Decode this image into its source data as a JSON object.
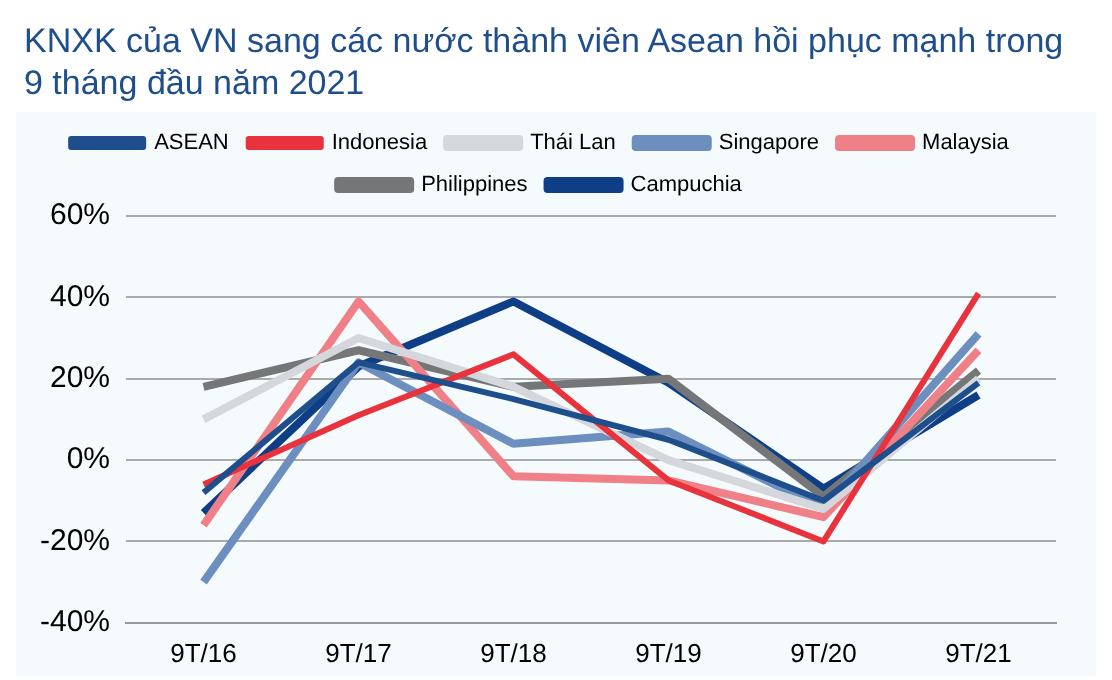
{
  "chart_data": {
    "type": "line",
    "title": "KNXK của VN sang các nước thành viên Asean hồi phục mạnh trong 9 tháng đầu năm 2021",
    "categories": [
      "9T/16",
      "9T/17",
      "9T/18",
      "9T/19",
      "9T/20",
      "9T/21"
    ],
    "series": [
      {
        "name": "ASEAN",
        "color": "#1f4e8c",
        "values": [
          -8,
          24,
          15,
          5,
          -10,
          19
        ]
      },
      {
        "name": "Indonesia",
        "color": "#e8323c",
        "values": [
          -6,
          11,
          26,
          -5,
          -20,
          41
        ]
      },
      {
        "name": "Thái Lan",
        "color": "#d4d7db",
        "values": [
          10,
          30,
          18,
          0,
          -12,
          20
        ]
      },
      {
        "name": "Singapore",
        "color": "#6d8fbf",
        "values": [
          -30,
          24,
          4,
          7,
          -12,
          31
        ]
      },
      {
        "name": "Malaysia",
        "color": "#f08088",
        "values": [
          -16,
          39,
          -4,
          -5,
          -14,
          27
        ]
      },
      {
        "name": "Philippines",
        "color": "#747678",
        "values": [
          18,
          27,
          18,
          20,
          -9,
          22
        ]
      },
      {
        "name": "Campuchia",
        "color": "#0e3f86",
        "values": [
          -13,
          23,
          39,
          19,
          -7,
          16
        ]
      }
    ],
    "ylim": [
      -40,
      60
    ],
    "yticks": [
      {
        "value": -40,
        "label": "-40%"
      },
      {
        "value": -20,
        "label": "-20%"
      },
      {
        "value": 0,
        "label": "0%"
      },
      {
        "value": 20,
        "label": "20%"
      },
      {
        "value": 40,
        "label": "40%"
      },
      {
        "value": 60,
        "label": "60%"
      }
    ],
    "grid": "y",
    "legend": "top",
    "marker": "none"
  }
}
